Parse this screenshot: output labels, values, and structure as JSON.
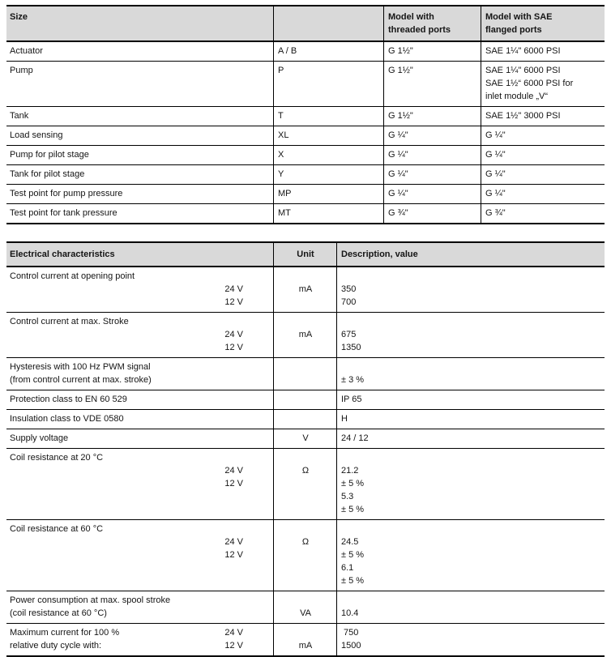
{
  "size_table": {
    "header": {
      "c1": "Size",
      "c2": "",
      "c3": "Model with\nthreaded ports",
      "c4": "Model with SAE\nflanged ports"
    },
    "rows": [
      [
        "Actuator",
        "A / B",
        "G 1½\"",
        "SAE 1¼\" 6000 PSI"
      ],
      [
        "Pump",
        "P",
        "G 1½\"",
        "SAE 1¼\" 6000 PSI\nSAE 1½“ 6000 PSI for\ninlet module „V“"
      ],
      [
        "Tank",
        "T",
        "G 1½\"",
        "SAE 1½\" 3000 PSI"
      ],
      [
        "Load sensing",
        "XL",
        "G ¼\"",
        "G ¼\""
      ],
      [
        "Pump for pilot stage",
        "X",
        "G ¼\"",
        "G ¼\""
      ],
      [
        "Tank for pilot stage",
        "Y",
        "G ¼\"",
        "G ¼\""
      ],
      [
        "Test point for pump pressure",
        "MP",
        "G  ¼\"",
        "G ¼\""
      ],
      [
        "Test point for tank pressure",
        "MT",
        "G ¾\"",
        "G ¾\""
      ]
    ]
  },
  "elec_table": {
    "header": {
      "c1": "Electrical characteristics",
      "c2": "Unit",
      "c3": "Description, value"
    },
    "rows": [
      {
        "lines": [
          {
            "l": "Control current at opening point"
          },
          {
            "r": "24 V",
            "u": "mA",
            "v": "350"
          },
          {
            "r": "12 V",
            "v": "700"
          }
        ]
      },
      {
        "lines": [
          {
            "l": "Control current at max. Stroke"
          },
          {
            "r": "24 V",
            "u": "mA",
            "v": "675"
          },
          {
            "r": "12 V",
            "v": "1350"
          }
        ]
      },
      {
        "lines": [
          {
            "l": "Hysteresis with 100 Hz PWM signal"
          },
          {
            "l": "(from control current at max. stroke)",
            "v": "± 3 %"
          }
        ]
      },
      {
        "lines": [
          {
            "l": "Protection class to EN 60 529",
            "v": "IP 65"
          }
        ]
      },
      {
        "lines": [
          {
            "l": "Insulation class to VDE 0580",
            "v": "H"
          }
        ]
      },
      {
        "lines": [
          {
            "l": "Supply voltage",
            "u": "V",
            "v": "24 / 12"
          }
        ]
      },
      {
        "lines": [
          {
            "l": "Coil resistance at 20 °C"
          },
          {
            "r": "24 V",
            "u": "Ω",
            "v": "21.2",
            "t": "± 5 %"
          },
          {
            "r": "12 V",
            "v": "5.3",
            "t": "± 5 %"
          }
        ]
      },
      {
        "lines": [
          {
            "l": "Coil resistance at 60 °C"
          },
          {
            "r": "24 V",
            "u": "Ω",
            "v": "24.5",
            "t": "± 5 %"
          },
          {
            "r": "12 V",
            "v": "6.1",
            "t": "± 5 %"
          }
        ]
      },
      {
        "lines": [
          {
            "l": "Power consumption at max. spool stroke"
          },
          {
            "l": "(coil resistance at 60 °C)",
            "u": "VA",
            "v": "10.4"
          }
        ]
      },
      {
        "lines": [
          {
            "l": "Maximum current for 100 %",
            "r": "24 V",
            "v": " 750"
          },
          {
            "l": "relative duty cycle with:",
            "r": "12 V",
            "u": "mA",
            "v": "1500"
          }
        ]
      }
    ]
  },
  "colors": {
    "header_bg": "#d9d9d9",
    "border": "#000000",
    "text": "#151515"
  }
}
